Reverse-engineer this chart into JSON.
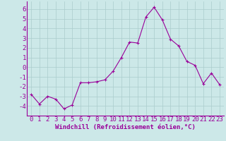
{
  "x": [
    0,
    1,
    2,
    3,
    4,
    5,
    6,
    7,
    8,
    9,
    10,
    11,
    12,
    13,
    14,
    15,
    16,
    17,
    18,
    19,
    20,
    21,
    22,
    23
  ],
  "y": [
    -2.8,
    -3.8,
    -3.0,
    -3.3,
    -4.3,
    -3.9,
    -1.6,
    -1.6,
    -1.5,
    -1.3,
    -0.4,
    1.0,
    2.6,
    2.5,
    5.2,
    6.2,
    4.9,
    2.9,
    2.2,
    0.6,
    0.2,
    -1.7,
    -0.6,
    -1.8
  ],
  "line_color": "#990099",
  "marker": "+",
  "bg_color": "#cce8e8",
  "grid_color": "#aacccc",
  "xlabel": "Windchill (Refroidissement éolien,°C)",
  "xlabel_color": "#990099",
  "tick_color": "#990099",
  "ylim": [
    -5,
    6.8
  ],
  "xlim": [
    -0.5,
    23.5
  ],
  "yticks": [
    -4,
    -3,
    -2,
    -1,
    0,
    1,
    2,
    3,
    4,
    5,
    6
  ],
  "xticks": [
    0,
    1,
    2,
    3,
    4,
    5,
    6,
    7,
    8,
    9,
    10,
    11,
    12,
    13,
    14,
    15,
    16,
    17,
    18,
    19,
    20,
    21,
    22,
    23
  ],
  "font_size": 6.5,
  "marker_size": 3,
  "linewidth": 0.8
}
